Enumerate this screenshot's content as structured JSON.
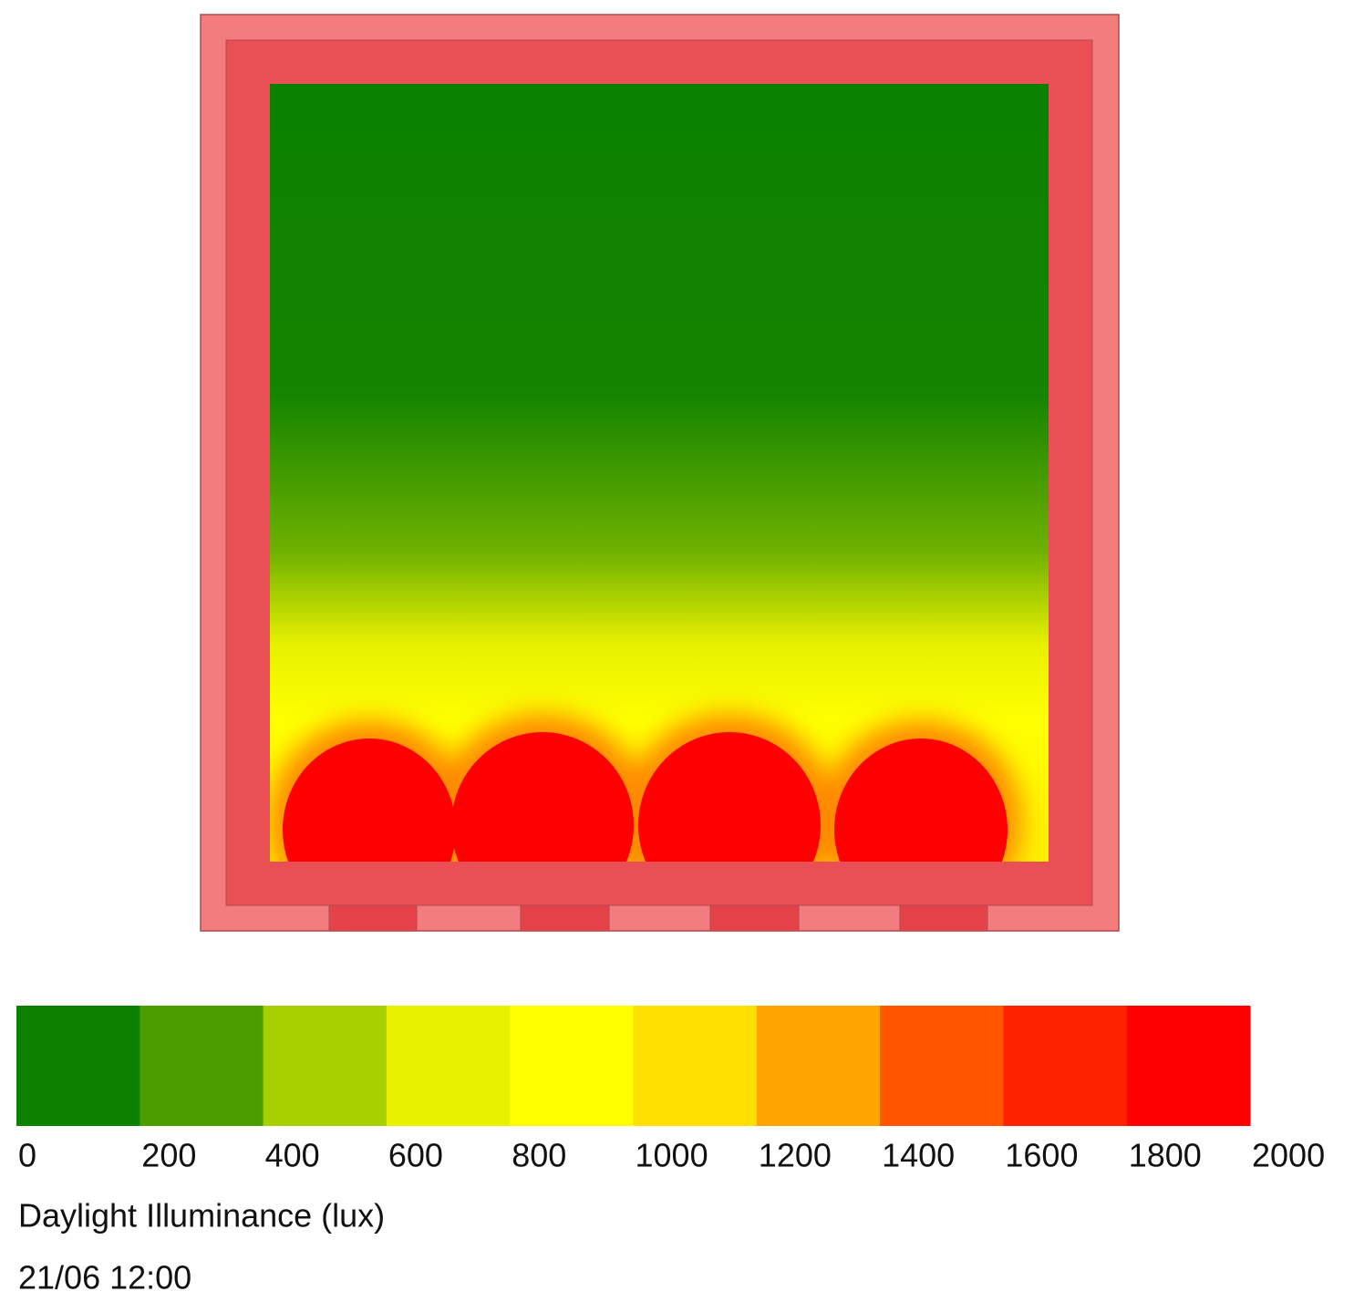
{
  "legend": {
    "ticks": [
      0,
      200,
      400,
      600,
      800,
      1000,
      1200,
      1400,
      1600,
      1800,
      2000
    ],
    "colors": [
      "#0d8000",
      "#4c9e00",
      "#a8d000",
      "#e8f200",
      "#ffff00",
      "#ffdf00",
      "#ffa500",
      "#ff5500",
      "#ff2200",
      "#ff0000"
    ],
    "label": "Daylight Illuminance (lux)",
    "timestamp": "21/06 12:00"
  }
}
